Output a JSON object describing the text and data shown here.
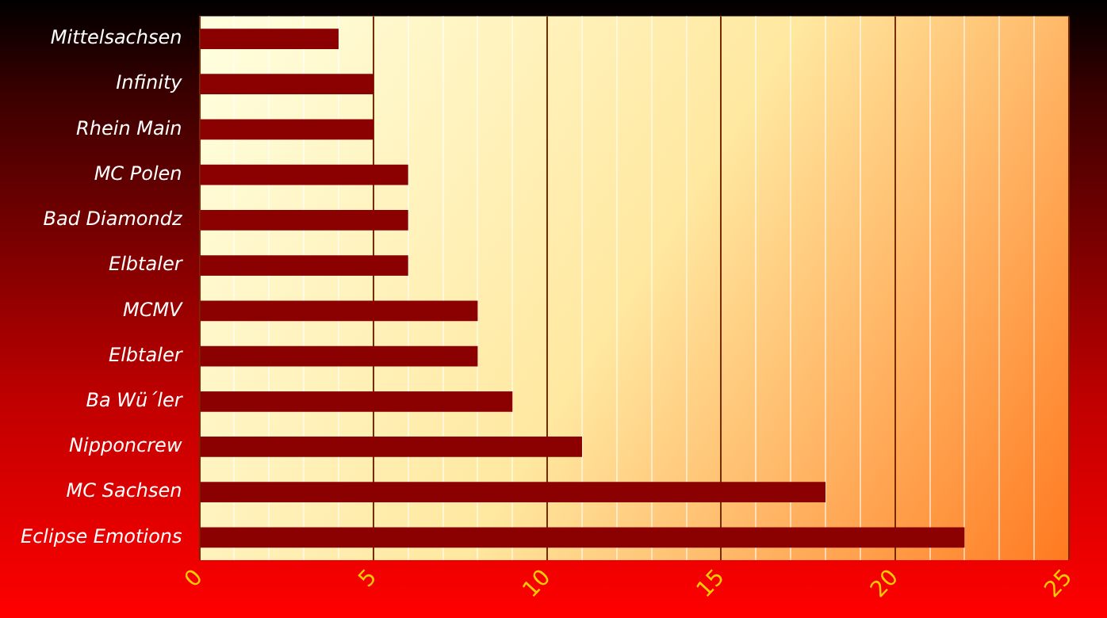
{
  "chart_data": {
    "type": "bar",
    "orientation": "horizontal",
    "categories": [
      "Mittelsachsen",
      "Infinity",
      "Rhein Main",
      "MC Polen",
      "Bad Diamondz",
      "Elbtaler",
      "MCMV",
      "Elbtaler",
      "Ba Wü´ler",
      "Nipponcrew",
      "MC Sachsen",
      "Eclipse Emotions"
    ],
    "values": [
      4,
      5,
      5,
      6,
      6,
      6,
      8,
      8,
      9,
      11,
      18,
      22
    ],
    "color": "#8b0000",
    "xlim": [
      0,
      25
    ],
    "xticks": [
      0,
      {
        "value": 1,
        "label": null
      },
      {
        "value": 2,
        "label": null
      },
      {
        "value": 3,
        "label": null
      },
      {
        "value": 4,
        "label": null
      },
      5,
      {
        "value": 6,
        "label": null
      },
      {
        "value": 7,
        "label": null
      },
      {
        "value": 8,
        "label": null
      },
      {
        "value": 9,
        "label": null
      },
      10,
      {
        "value": 11,
        "label": null
      },
      {
        "value": 12,
        "label": null
      },
      {
        "value": 13,
        "label": null
      },
      {
        "value": 14,
        "label": null
      },
      15,
      {
        "value": 16,
        "label": null
      },
      {
        "value": 17,
        "label": null
      },
      {
        "value": 18,
        "label": null
      },
      {
        "value": 19,
        "label": null
      },
      20,
      {
        "value": 21,
        "label": null
      },
      {
        "value": 22,
        "label": null
      },
      {
        "value": 23,
        "label": null
      },
      {
        "value": 24,
        "label": null
      },
      25
    ],
    "grid": "x",
    "legend": false
  }
}
